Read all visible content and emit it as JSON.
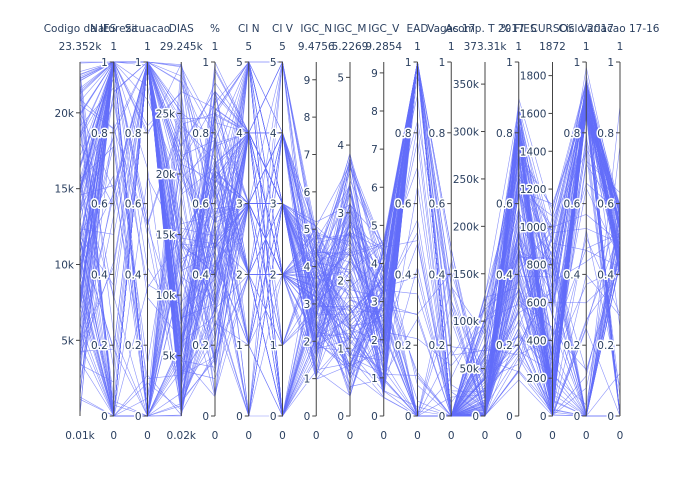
{
  "chart_data": {
    "type": "parallel_coordinates",
    "line_color": "#636efa",
    "line_count": 140,
    "axes": [
      {
        "label": "Codigo da IES",
        "range": [
          10,
          23352
        ],
        "range_labels": [
          "0.01k",
          "23.352k"
        ],
        "ticks": [
          {
            "v": 5000,
            "t": "5k"
          },
          {
            "v": 10000,
            "t": "10k"
          },
          {
            "v": 15000,
            "t": "15k"
          },
          {
            "v": 20000,
            "t": "20k"
          }
        ]
      },
      {
        "label": "Natureza",
        "range": [
          0,
          1
        ],
        "range_labels": [
          "0",
          "1"
        ],
        "ticks": [
          {
            "v": 0,
            "t": "0"
          },
          {
            "v": 0.2,
            "t": "0.2"
          },
          {
            "v": 0.4,
            "t": "0.4"
          },
          {
            "v": 0.6,
            "t": "0.6"
          },
          {
            "v": 0.8,
            "t": "0.8"
          },
          {
            "v": 1,
            "t": "1"
          }
        ]
      },
      {
        "label": "Situacao",
        "range": [
          0,
          1
        ],
        "range_labels": [
          "0",
          "1"
        ],
        "ticks": [
          {
            "v": 0,
            "t": "0"
          },
          {
            "v": 0.2,
            "t": "0.2"
          },
          {
            "v": 0.4,
            "t": "0.4"
          },
          {
            "v": 0.6,
            "t": "0.6"
          },
          {
            "v": 0.8,
            "t": "0.8"
          },
          {
            "v": 1,
            "t": "1"
          }
        ]
      },
      {
        "label": "DIAS",
        "range": [
          20,
          29245
        ],
        "range_labels": [
          "0.02k",
          "29.245k"
        ],
        "ticks": [
          {
            "v": 5000,
            "t": "5k"
          },
          {
            "v": 10000,
            "t": "10k"
          },
          {
            "v": 15000,
            "t": "15k"
          },
          {
            "v": 20000,
            "t": "20k"
          },
          {
            "v": 25000,
            "t": "25k"
          }
        ]
      },
      {
        "label": "%",
        "range": [
          0,
          1
        ],
        "range_labels": [
          "0",
          "1"
        ],
        "ticks": [
          {
            "v": 0,
            "t": "0"
          },
          {
            "v": 0.2,
            "t": "0.2"
          },
          {
            "v": 0.4,
            "t": "0.4"
          },
          {
            "v": 0.6,
            "t": "0.6"
          },
          {
            "v": 0.8,
            "t": "0.8"
          },
          {
            "v": 1,
            "t": "1"
          }
        ]
      },
      {
        "label": "CI N",
        "range": [
          0,
          5
        ],
        "range_labels": [
          "0",
          "5"
        ],
        "ticks": [
          {
            "v": 0,
            "t": "0"
          },
          {
            "v": 1,
            "t": "1"
          },
          {
            "v": 2,
            "t": "2"
          },
          {
            "v": 3,
            "t": "3"
          },
          {
            "v": 4,
            "t": "4"
          },
          {
            "v": 5,
            "t": "5"
          }
        ]
      },
      {
        "label": "CI V",
        "range": [
          0,
          5
        ],
        "range_labels": [
          "0",
          "5"
        ],
        "ticks": [
          {
            "v": 0,
            "t": "0"
          },
          {
            "v": 1,
            "t": "1"
          },
          {
            "v": 2,
            "t": "2"
          },
          {
            "v": 3,
            "t": "3"
          },
          {
            "v": 4,
            "t": "4"
          },
          {
            "v": 5,
            "t": "5"
          }
        ]
      },
      {
        "label": "IGC_N",
        "range": [
          0,
          9.4756
        ],
        "range_labels": [
          "0",
          "9.4756"
        ],
        "ticks": [
          {
            "v": 0,
            "t": "0"
          },
          {
            "v": 1,
            "t": "1"
          },
          {
            "v": 2,
            "t": "2"
          },
          {
            "v": 3,
            "t": "3"
          },
          {
            "v": 4,
            "t": "4"
          },
          {
            "v": 5,
            "t": "5"
          },
          {
            "v": 6,
            "t": "6"
          },
          {
            "v": 7,
            "t": "7"
          },
          {
            "v": 8,
            "t": "8"
          },
          {
            "v": 9,
            "t": "9"
          }
        ]
      },
      {
        "label": "IGC_M",
        "range": [
          0,
          5.2269
        ],
        "range_labels": [
          "0",
          "5.2269"
        ],
        "ticks": [
          {
            "v": 0,
            "t": "0"
          },
          {
            "v": 1,
            "t": "1"
          },
          {
            "v": 2,
            "t": "2"
          },
          {
            "v": 3,
            "t": "3"
          },
          {
            "v": 4,
            "t": "4"
          },
          {
            "v": 5,
            "t": "5"
          }
        ]
      },
      {
        "label": "IGC_V",
        "range": [
          0,
          9.2854
        ],
        "range_labels": [
          "0",
          "9.2854"
        ],
        "ticks": [
          {
            "v": 0,
            "t": "0"
          },
          {
            "v": 1,
            "t": "1"
          },
          {
            "v": 2,
            "t": "2"
          },
          {
            "v": 3,
            "t": "3"
          },
          {
            "v": 4,
            "t": "4"
          },
          {
            "v": 5,
            "t": "5"
          },
          {
            "v": 6,
            "t": "6"
          },
          {
            "v": 7,
            "t": "7"
          },
          {
            "v": 8,
            "t": "8"
          },
          {
            "v": 9,
            "t": "9"
          }
        ]
      },
      {
        "label": "EAD",
        "range": [
          0,
          1
        ],
        "range_labels": [
          "0",
          "1"
        ],
        "ticks": [
          {
            "v": 0,
            "t": "0"
          },
          {
            "v": 0.2,
            "t": "0.2"
          },
          {
            "v": 0.4,
            "t": "0.4"
          },
          {
            "v": 0.6,
            "t": "0.6"
          },
          {
            "v": 0.8,
            "t": "0.8"
          },
          {
            "v": 1,
            "t": "1"
          }
        ]
      },
      {
        "label": "Vagas 17",
        "range": [
          0,
          1
        ],
        "range_labels": [
          "0",
          "1"
        ],
        "ticks": [
          {
            "v": 0,
            "t": "0"
          },
          {
            "v": 0.2,
            "t": "0.2"
          },
          {
            "v": 0.4,
            "t": "0.4"
          },
          {
            "v": 0.6,
            "t": "0.6"
          },
          {
            "v": 0.8,
            "t": "0.8"
          },
          {
            "v": 1,
            "t": "1"
          }
        ]
      },
      {
        "label": "Acomp. T 2017",
        "range": [
          0,
          373310
        ],
        "range_labels": [
          "0",
          "373.31k"
        ],
        "ticks": [
          {
            "v": 0,
            "t": "0"
          },
          {
            "v": 50000,
            "t": "50k"
          },
          {
            "v": 100000,
            "t": "100k"
          },
          {
            "v": 150000,
            "t": "150k"
          },
          {
            "v": 200000,
            "t": "200k"
          },
          {
            "v": 250000,
            "t": "250k"
          },
          {
            "v": 300000,
            "t": "300k"
          },
          {
            "v": 350000,
            "t": "350k"
          }
        ]
      },
      {
        "label": "% FIES",
        "range": [
          0,
          1
        ],
        "range_labels": [
          "0",
          "1"
        ],
        "ticks": [
          {
            "v": 0,
            "t": "0"
          },
          {
            "v": 0.2,
            "t": "0.2"
          },
          {
            "v": 0.4,
            "t": "0.4"
          },
          {
            "v": 0.6,
            "t": "0.6"
          },
          {
            "v": 0.8,
            "t": "0.8"
          },
          {
            "v": 1,
            "t": "1"
          }
        ]
      },
      {
        "label": "CURSOS",
        "range": [
          0,
          1872
        ],
        "range_labels": [
          "0",
          "1872"
        ],
        "ticks": [
          {
            "v": 0,
            "t": "0"
          },
          {
            "v": 200,
            "t": "200"
          },
          {
            "v": 400,
            "t": "400"
          },
          {
            "v": 600,
            "t": "600"
          },
          {
            "v": 800,
            "t": "800"
          },
          {
            "v": 1000,
            "t": "1000"
          },
          {
            "v": 1200,
            "t": "1200"
          },
          {
            "v": 1400,
            "t": "1400"
          },
          {
            "v": 1600,
            "t": "1600"
          },
          {
            "v": 1800,
            "t": "1800"
          }
        ]
      },
      {
        "label": "Ciclo 2017",
        "range": [
          0,
          1
        ],
        "range_labels": [
          "0",
          "1"
        ],
        "ticks": [
          {
            "v": 0,
            "t": "0"
          },
          {
            "v": 0.2,
            "t": "0.2"
          },
          {
            "v": 0.4,
            "t": "0.4"
          },
          {
            "v": 0.6,
            "t": "0.6"
          },
          {
            "v": 0.8,
            "t": "0.8"
          },
          {
            "v": 1,
            "t": "1"
          }
        ]
      },
      {
        "label": "Variacao 17-16",
        "range": [
          0,
          1
        ],
        "range_labels": [
          "0",
          "1"
        ],
        "ticks": [
          {
            "v": 0,
            "t": "0"
          },
          {
            "v": 0.2,
            "t": "0.2"
          },
          {
            "v": 0.4,
            "t": "0.4"
          },
          {
            "v": 0.6,
            "t": "0.6"
          },
          {
            "v": 0.8,
            "t": "0.8"
          },
          {
            "v": 1,
            "t": "1"
          }
        ]
      }
    ]
  }
}
